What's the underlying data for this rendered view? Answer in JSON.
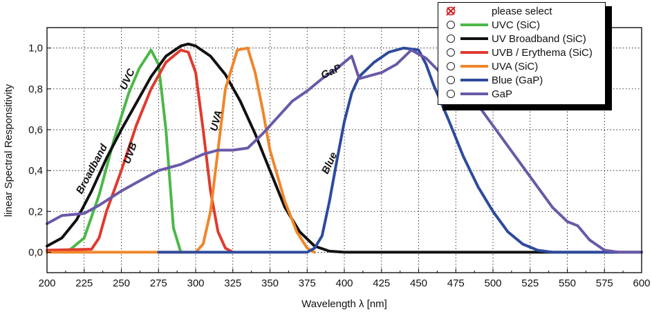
{
  "chart_data": {
    "type": "line",
    "xlabel": "Wavelength λ [nm]",
    "ylabel": "linear Spectral Responsitivity",
    "xlim": [
      200,
      600
    ],
    "ylim": [
      -0.1,
      1.1
    ],
    "x_ticks": [
      "200",
      "225",
      "250",
      "275",
      "300",
      "325",
      "350",
      "375",
      "400",
      "425",
      "450",
      "475",
      "500",
      "525",
      "550",
      "575",
      "600"
    ],
    "y_ticks": [
      "0,0",
      "0,2",
      "0,4",
      "0,6",
      "0,8",
      "1,0"
    ],
    "grid": true,
    "legend_position": "top-right",
    "series": [
      {
        "name": "UVC (SiC)",
        "color": "#4cb848",
        "points": [
          [
            200,
            0
          ],
          [
            215,
            0.01
          ],
          [
            225,
            0.07
          ],
          [
            235,
            0.28
          ],
          [
            245,
            0.55
          ],
          [
            255,
            0.78
          ],
          [
            262,
            0.9
          ],
          [
            270,
            0.99
          ],
          [
            275,
            0.92
          ],
          [
            280,
            0.6
          ],
          [
            285,
            0.12
          ],
          [
            290,
            0
          ]
        ]
      },
      {
        "name": "UV Broadband (SiC)",
        "color": "#111111",
        "points": [
          [
            200,
            0.03
          ],
          [
            210,
            0.07
          ],
          [
            220,
            0.16
          ],
          [
            230,
            0.3
          ],
          [
            240,
            0.46
          ],
          [
            250,
            0.6
          ],
          [
            260,
            0.73
          ],
          [
            270,
            0.86
          ],
          [
            280,
            0.96
          ],
          [
            290,
            1.01
          ],
          [
            295,
            1.02
          ],
          [
            300,
            1.01
          ],
          [
            310,
            0.96
          ],
          [
            320,
            0.87
          ],
          [
            330,
            0.74
          ],
          [
            340,
            0.58
          ],
          [
            350,
            0.4
          ],
          [
            360,
            0.22
          ],
          [
            370,
            0.1
          ],
          [
            380,
            0.03
          ],
          [
            390,
            0.005
          ],
          [
            400,
            0
          ],
          [
            600,
            0
          ]
        ]
      },
      {
        "name": "UVB / Erythema (SiC)",
        "color": "#e03a2e",
        "points": [
          [
            200,
            0.01
          ],
          [
            230,
            0.015
          ],
          [
            235,
            0.07
          ],
          [
            240,
            0.2
          ],
          [
            250,
            0.4
          ],
          [
            260,
            0.62
          ],
          [
            270,
            0.8
          ],
          [
            280,
            0.93
          ],
          [
            290,
            0.99
          ],
          [
            295,
            0.98
          ],
          [
            300,
            0.88
          ],
          [
            305,
            0.6
          ],
          [
            310,
            0.3
          ],
          [
            315,
            0.1
          ],
          [
            320,
            0.02
          ],
          [
            325,
            0
          ]
        ]
      },
      {
        "name": "UVA (SiC)",
        "color": "#f0862a",
        "points": [
          [
            200,
            0
          ],
          [
            300,
            0
          ],
          [
            305,
            0.04
          ],
          [
            310,
            0.2
          ],
          [
            315,
            0.5
          ],
          [
            320,
            0.8
          ],
          [
            328,
            0.99
          ],
          [
            335,
            1.0
          ],
          [
            340,
            0.88
          ],
          [
            345,
            0.7
          ],
          [
            350,
            0.5
          ],
          [
            360,
            0.25
          ],
          [
            368,
            0.1
          ],
          [
            375,
            0.02
          ],
          [
            380,
            0
          ]
        ]
      },
      {
        "name": "Blue (GaP)",
        "color": "#2e4a9e",
        "points": [
          [
            275,
            0
          ],
          [
            375,
            0
          ],
          [
            380,
            0.02
          ],
          [
            385,
            0.08
          ],
          [
            390,
            0.25
          ],
          [
            395,
            0.45
          ],
          [
            400,
            0.64
          ],
          [
            405,
            0.78
          ],
          [
            410,
            0.86
          ],
          [
            420,
            0.93
          ],
          [
            430,
            0.98
          ],
          [
            440,
            1.0
          ],
          [
            450,
            0.99
          ],
          [
            455,
            0.92
          ],
          [
            460,
            0.82
          ],
          [
            470,
            0.65
          ],
          [
            480,
            0.47
          ],
          [
            490,
            0.32
          ],
          [
            500,
            0.2
          ],
          [
            510,
            0.1
          ],
          [
            520,
            0.04
          ],
          [
            530,
            0.01
          ],
          [
            540,
            0
          ],
          [
            600,
            0
          ]
        ]
      },
      {
        "name": "GaP",
        "color": "#6a59a8",
        "points": [
          [
            200,
            0.14
          ],
          [
            210,
            0.18
          ],
          [
            225,
            0.19
          ],
          [
            235,
            0.23
          ],
          [
            250,
            0.3
          ],
          [
            260,
            0.34
          ],
          [
            275,
            0.4
          ],
          [
            290,
            0.43
          ],
          [
            305,
            0.48
          ],
          [
            315,
            0.5
          ],
          [
            325,
            0.5
          ],
          [
            335,
            0.51
          ],
          [
            345,
            0.58
          ],
          [
            355,
            0.66
          ],
          [
            365,
            0.74
          ],
          [
            375,
            0.79
          ],
          [
            385,
            0.85
          ],
          [
            395,
            0.9
          ],
          [
            405,
            0.96
          ],
          [
            410,
            0.85
          ],
          [
            415,
            0.86
          ],
          [
            425,
            0.88
          ],
          [
            435,
            0.92
          ],
          [
            445,
            0.99
          ],
          [
            455,
            0.95
          ],
          [
            470,
            0.84
          ],
          [
            490,
            0.72
          ],
          [
            500,
            0.62
          ],
          [
            520,
            0.42
          ],
          [
            540,
            0.22
          ],
          [
            550,
            0.15
          ],
          [
            557,
            0.13
          ],
          [
            565,
            0.06
          ],
          [
            575,
            0.01
          ],
          [
            585,
            0
          ],
          [
            600,
            0
          ]
        ]
      }
    ],
    "annotations": [
      {
        "text": "Broadband",
        "x": 232,
        "y": 0.4,
        "angle": -62
      },
      {
        "text": "UVC",
        "x": 256,
        "y": 0.84,
        "angle": -65
      },
      {
        "text": "UVB",
        "x": 258,
        "y": 0.48,
        "angle": -70
      },
      {
        "text": "UVA",
        "x": 316,
        "y": 0.64,
        "angle": -75
      },
      {
        "text": "GaP",
        "x": 392,
        "y": 0.87,
        "angle": -25
      },
      {
        "text": "Blue",
        "x": 392,
        "y": 0.43,
        "angle": -65
      }
    ]
  },
  "legend": {
    "items": [
      {
        "label": "please select",
        "kind": "none",
        "icon": "red-x-icon",
        "color": "#d21e1e"
      },
      {
        "label": "UVC (SiC)",
        "kind": "radio",
        "color": "#4cb848"
      },
      {
        "label": "UV Broadband (SiC)",
        "kind": "radio",
        "color": "#111111"
      },
      {
        "label": "UVB / Erythema (SiC)",
        "kind": "radio",
        "color": "#e03a2e"
      },
      {
        "label": "UVA (SiC)",
        "kind": "radio",
        "color": "#f0862a"
      },
      {
        "label": "Blue (GaP)",
        "kind": "radio",
        "color": "#2e4a9e"
      },
      {
        "label": "GaP",
        "kind": "radio",
        "color": "#6a59a8"
      }
    ]
  }
}
